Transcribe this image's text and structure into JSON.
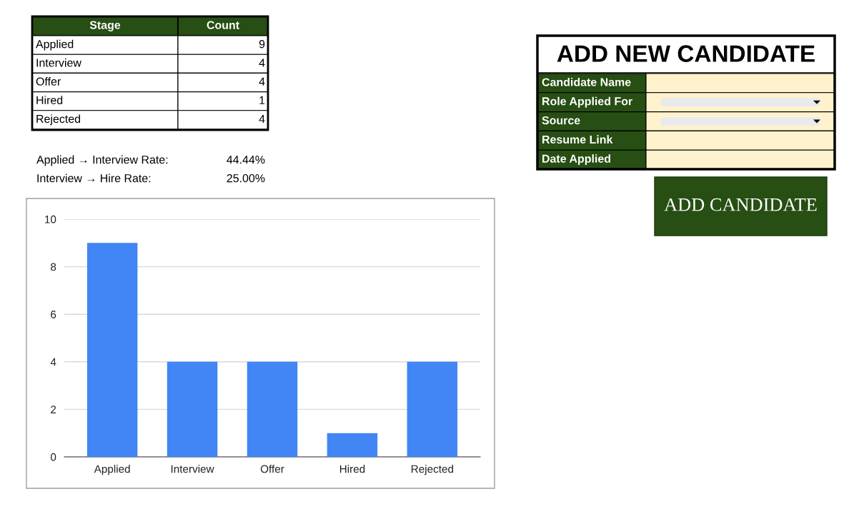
{
  "chart_data": [
    {
      "type": "other",
      "annotations": [
        "Stage",
        "Count",
        "Applied",
        "9",
        "Interview",
        "4",
        "Offer",
        "4",
        "Hired",
        "1",
        "Rejected",
        "4",
        "Applied → Interview Rate:",
        "44.44%",
        "Interview → Hire Rate:",
        "25.00%"
      ],
      "color": "#274e13"
    },
    {
      "type": "bar",
      "categories": [
        "Applied",
        "Interview",
        "Offer",
        "Hired",
        "Rejected"
      ],
      "values": [
        9,
        4,
        4,
        1,
        4
      ],
      "color": "#4285f4",
      "ylim": [
        0,
        10
      ],
      "yticks": [
        0,
        2,
        4,
        6,
        8,
        10
      ],
      "grid": "y"
    },
    {
      "type": "other",
      "annotations": [
        "ADD NEW CANDIDATE",
        "Candidate Name",
        "Role Applied For",
        "Source",
        "Resume Link",
        "Date Applied",
        "ADD CANDIDATE"
      ],
      "color": "#274e13"
    }
  ]
}
